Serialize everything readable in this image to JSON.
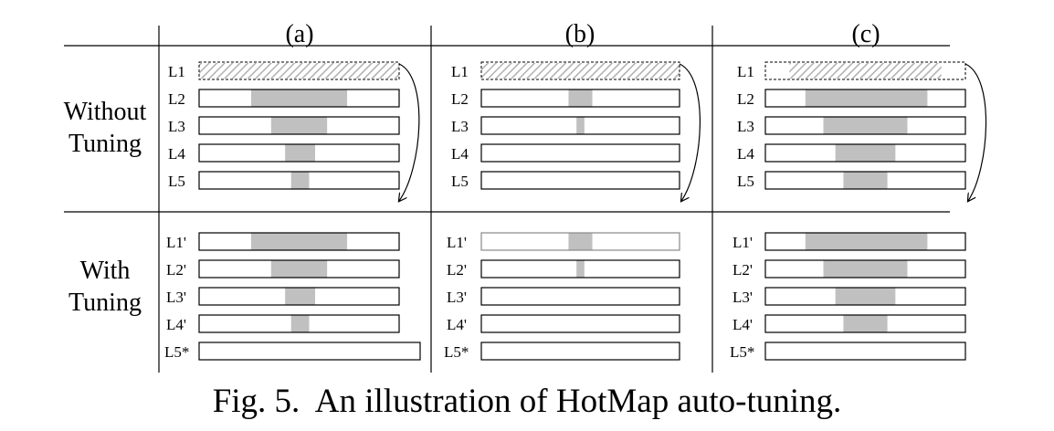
{
  "columns": [
    "(a)",
    "(b)",
    "(c)"
  ],
  "rows": [
    {
      "label_lines": [
        "Without",
        "Tuning"
      ],
      "levels": [
        "L1",
        "L2",
        "L3",
        "L4",
        "L5"
      ]
    },
    {
      "label_lines": [
        "With",
        "Tuning"
      ],
      "levels": [
        "L1'",
        "L2'",
        "L3'",
        "L4'",
        "L5*"
      ]
    }
  ],
  "hot_ranges": {
    "a": {
      "without": [
        [
          0,
          1
        ],
        [
          0.26,
          0.74
        ],
        [
          0.36,
          0.64
        ],
        [
          0.43,
          0.58
        ],
        [
          0.46,
          0.55
        ]
      ],
      "with": [
        [
          0.26,
          0.74
        ],
        [
          0.36,
          0.64
        ],
        [
          0.43,
          0.58
        ],
        [
          0.46,
          0.55
        ],
        null
      ]
    },
    "b": {
      "without": [
        [
          0,
          1
        ],
        [
          0.44,
          0.56
        ],
        [
          0.48,
          0.52
        ],
        null,
        null
      ],
      "with": [
        [
          0.44,
          0.56
        ],
        [
          0.48,
          0.52
        ],
        null,
        null,
        null
      ]
    },
    "c": {
      "without": [
        [
          0.12,
          0.88
        ],
        [
          0.2,
          0.81
        ],
        [
          0.29,
          0.71
        ],
        [
          0.35,
          0.65
        ],
        [
          0.39,
          0.61
        ]
      ],
      "with": [
        [
          0.2,
          0.81
        ],
        [
          0.29,
          0.71
        ],
        [
          0.35,
          0.65
        ],
        [
          0.39,
          0.61
        ],
        null
      ]
    }
  },
  "colors": {
    "hot_fill": "#c0c0c0",
    "hatch": "#b0b0b0",
    "line": "#000000"
  },
  "caption": "Fig. 5.  An illustration of HotMap auto-tuning."
}
